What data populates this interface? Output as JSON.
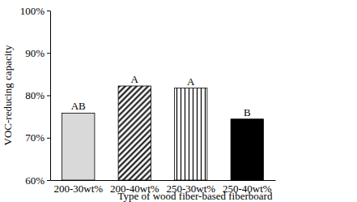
{
  "chart_data": {
    "type": "bar",
    "x_label": "Type of wood fiber-based fiberboard",
    "y_label": "VOC-reducing capacity",
    "categories": [
      "200-30wt%",
      "200-40wt%",
      "250-30wt%",
      "250-40wt%"
    ],
    "values": [
      75.8,
      82.2,
      81.7,
      74.4
    ],
    "annotations": [
      "AB",
      "A",
      "A",
      "B"
    ],
    "colors": [
      "#d9d9d9",
      "#000000",
      "#000000",
      "#000000"
    ],
    "ylim": [
      60,
      100
    ],
    "yticks": [
      {
        "value": 60,
        "label": "60%"
      },
      {
        "value": 70,
        "label": "70%"
      },
      {
        "value": 80,
        "label": "80%"
      },
      {
        "value": 90,
        "label": "90%"
      },
      {
        "value": 100,
        "label": "100%"
      }
    ],
    "grid": false
  }
}
